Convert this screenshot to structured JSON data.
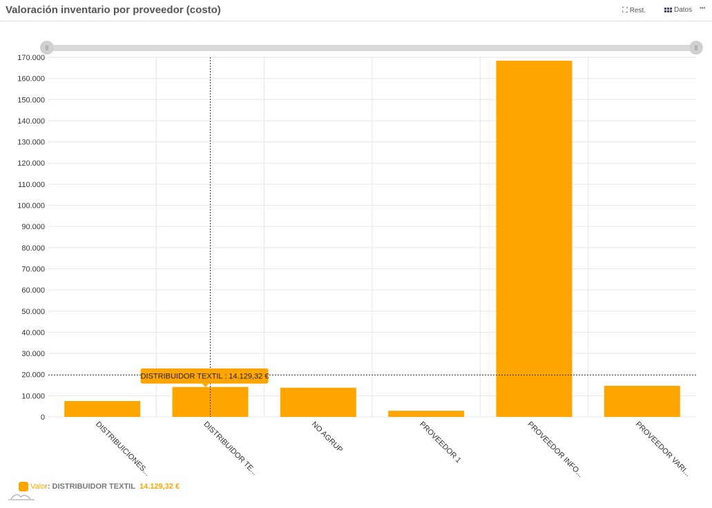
{
  "header": {
    "title": "Valoración inventario por proveedor (costo)",
    "reset_label": "Rest.",
    "data_label": "Datos",
    "more_label": "•••"
  },
  "tooltip": "DISTRIBUIDOR TEXTIL : 14.129,32 €",
  "legend": {
    "series": "Valor",
    "separator": ":",
    "category": "DISTRIBUIDOR TEXTIL",
    "value": "14.129,32 €"
  },
  "colors": {
    "bar": "#ffa500"
  },
  "chart_data": {
    "type": "bar",
    "title": "Valoración inventario por proveedor (costo)",
    "categories": [
      "DISTRIBUICIONES...",
      "DISTRIBUIDOR TE...",
      "NO AGRUP",
      "PROVEEDOR 1",
      "PROVEEDOR INFO...",
      "PROVEEDOR VARI..."
    ],
    "values": [
      7500,
      14129.32,
      13800,
      2900,
      168400,
      14700
    ],
    "ylim": [
      0,
      170000
    ],
    "yticks": [
      "0",
      "10.000",
      "20.000",
      "30.000",
      "40.000",
      "50.000",
      "60.000",
      "70.000",
      "80.000",
      "90.000",
      "100.000",
      "110.000",
      "120.000",
      "130.000",
      "140.000",
      "150.000",
      "160.000",
      "170.000"
    ],
    "grid": true,
    "crosshair_y": 19800,
    "highlight_index": 1
  }
}
